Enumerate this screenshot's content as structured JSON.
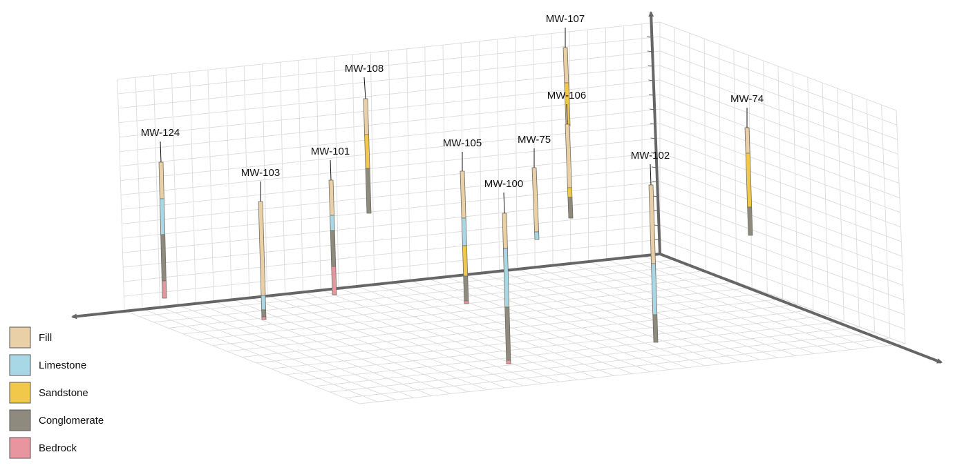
{
  "wells": [
    {
      "label": "MW-124"
    },
    {
      "label": "MW-103"
    },
    {
      "label": "MW-101"
    },
    {
      "label": "MW-108"
    },
    {
      "label": "MW-105"
    },
    {
      "label": "MW-100"
    },
    {
      "label": "MW-75"
    },
    {
      "label": "MW-107"
    },
    {
      "label": "MW-106"
    },
    {
      "label": "MW-102"
    },
    {
      "label": "MW-74"
    }
  ],
  "legend": [
    {
      "label": "Fill",
      "color": "#ead0a6"
    },
    {
      "label": "Limestone",
      "color": "#a8d8e6"
    },
    {
      "label": "Sandstone",
      "color": "#f2c84b"
    },
    {
      "label": "Conglomerate",
      "color": "#8f8a7e"
    },
    {
      "label": "Bedrock",
      "color": "#e8959f"
    }
  ]
}
